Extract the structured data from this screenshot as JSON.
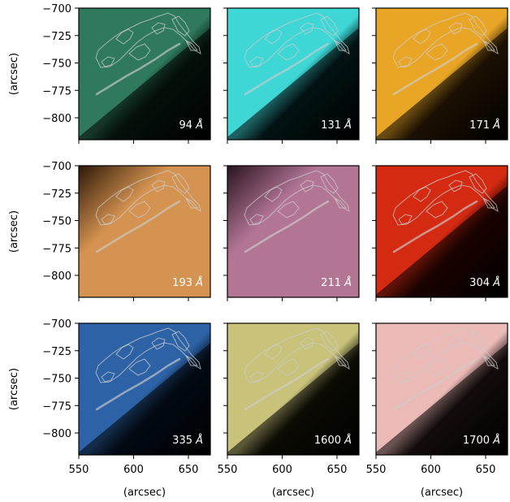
{
  "chart_data": {
    "type": "image-grid",
    "layout": {
      "rows": 3,
      "cols": 3
    },
    "xlabel": "(arcsec)",
    "ylabel": "(arcsec)",
    "xlim": [
      550,
      670
    ],
    "ylim": [
      -820,
      -700
    ],
    "xticks": [
      550,
      600,
      650
    ],
    "yticks": [
      -700,
      -725,
      -750,
      -775,
      -800
    ],
    "xtick_labels": [
      "550",
      "600",
      "650"
    ],
    "ytick_labels": [
      "−700",
      "−725",
      "−750",
      "−775",
      "−800"
    ],
    "panels": [
      {
        "wavelength": "94",
        "unit": "Å",
        "color": "#2f7a5c",
        "dark": "#0b2419",
        "bright_side": "upper-left"
      },
      {
        "wavelength": "131",
        "unit": "Å",
        "color": "#3fd6d6",
        "dark": "#052a2c",
        "bright_side": "upper-left"
      },
      {
        "wavelength": "171",
        "unit": "Å",
        "color": "#e9a626",
        "dark": "#3d2405",
        "bright_side": "upper-left"
      },
      {
        "wavelength": "193",
        "unit": "Å",
        "color": "#d49350",
        "dark": "#2e1808",
        "bright_side": "full"
      },
      {
        "wavelength": "211",
        "unit": "Å",
        "color": "#b27594",
        "dark": "#2b1320",
        "bright_side": "full"
      },
      {
        "wavelength": "304",
        "unit": "Å",
        "color": "#d42a12",
        "dark": "#3a0600",
        "bright_side": "upper-left"
      },
      {
        "wavelength": "335",
        "unit": "Å",
        "color": "#2d63a6",
        "dark": "#07172d",
        "bright_side": "upper-left"
      },
      {
        "wavelength": "1600",
        "unit": "Å",
        "color": "#c8c27b",
        "dark": "#1b1a0a",
        "bright_side": "upper-left"
      },
      {
        "wavelength": "1700",
        "unit": "Å",
        "color": "#ebb9b6",
        "dark": "#2b1b1a",
        "bright_side": "upper-left"
      }
    ],
    "contour_color": "#cccccc"
  }
}
